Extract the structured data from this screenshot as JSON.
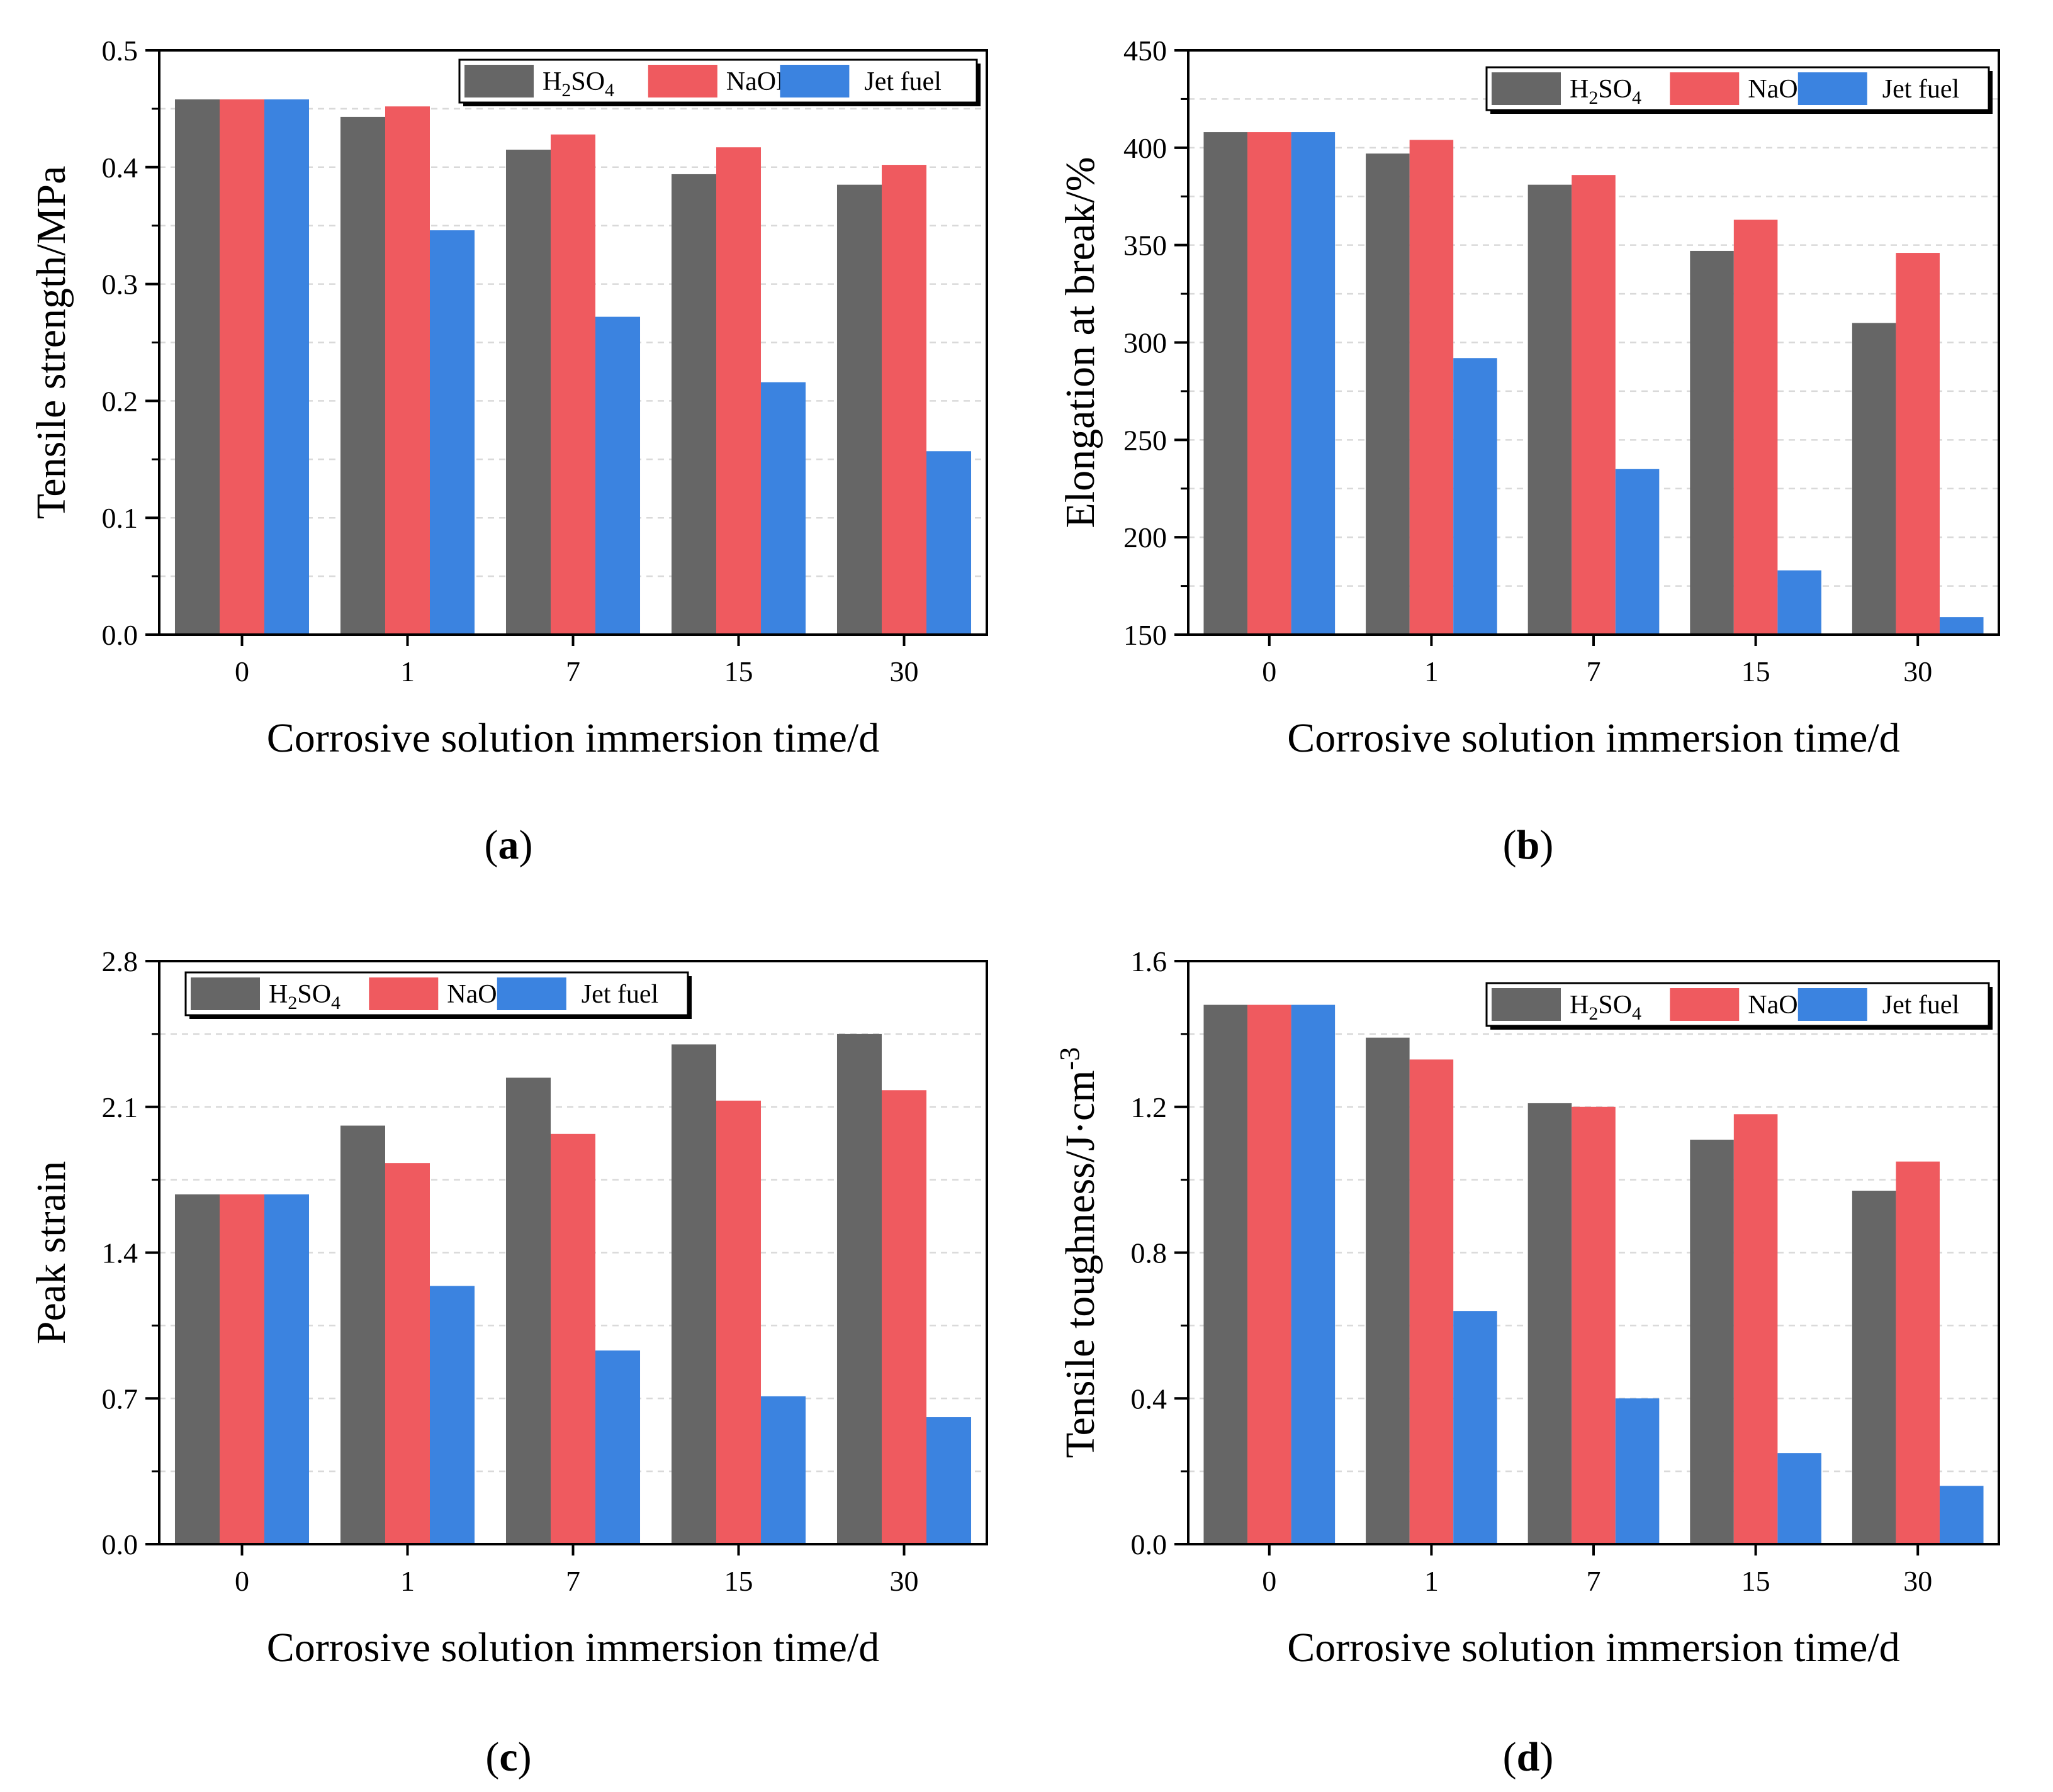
{
  "colors": {
    "H2SO4": "#666666",
    "NaOH": "#ef5a5f",
    "Jet fuel": "#3b83e0"
  },
  "legend": {
    "h2so4_main": "H",
    "h2so4_sub1": "2",
    "h2so4_mid": "SO",
    "h2so4_sub2": "4",
    "naoh": "NaOH",
    "jet_fuel": "Jet fuel"
  },
  "chart_data": [
    {
      "id": "a",
      "type": "bar",
      "caption_letter": "a",
      "categories": [
        "0",
        "1",
        "7",
        "15",
        "30"
      ],
      "series": [
        {
          "name": "H2SO4",
          "values": [
            0.458,
            0.443,
            0.415,
            0.394,
            0.385
          ]
        },
        {
          "name": "NaOH",
          "values": [
            0.458,
            0.452,
            0.428,
            0.417,
            0.402
          ]
        },
        {
          "name": "Jet fuel",
          "values": [
            0.458,
            0.346,
            0.272,
            0.216,
            0.157
          ]
        }
      ],
      "xlabel": "Corrosive solution immersion time/d",
      "ylabel": "Tensile strength/MPa",
      "ylim": [
        0,
        0.5
      ],
      "yticks": [
        "0.0",
        "0.1",
        "0.2",
        "0.3",
        "0.4",
        "0.5"
      ],
      "legend_position": "top-right"
    },
    {
      "id": "b",
      "type": "bar",
      "caption_letter": "b",
      "categories": [
        "0",
        "1",
        "7",
        "15",
        "30"
      ],
      "series": [
        {
          "name": "H2SO4",
          "values": [
            408,
            397,
            381,
            347,
            310
          ]
        },
        {
          "name": "NaOH",
          "values": [
            408,
            404,
            386,
            363,
            346
          ]
        },
        {
          "name": "Jet fuel",
          "values": [
            408,
            292,
            235,
            183,
            159
          ]
        }
      ],
      "xlabel": "Corrosive solution immersion time/d",
      "ylabel": "Elongation at break/%",
      "ylim": [
        150,
        450
      ],
      "yticks": [
        "150",
        "200",
        "250",
        "300",
        "350",
        "400",
        "450"
      ],
      "legend_position": "top-right"
    },
    {
      "id": "c",
      "type": "bar",
      "caption_letter": "c",
      "categories": [
        "0",
        "1",
        "7",
        "15",
        "30"
      ],
      "series": [
        {
          "name": "H2SO4",
          "values": [
            1.68,
            2.01,
            2.24,
            2.4,
            2.45
          ]
        },
        {
          "name": "NaOH",
          "values": [
            1.68,
            1.83,
            1.97,
            2.13,
            2.18
          ]
        },
        {
          "name": "Jet fuel",
          "values": [
            1.68,
            1.24,
            0.93,
            0.71,
            0.61
          ]
        }
      ],
      "xlabel": "Corrosive solution immersion time/d",
      "ylabel": "Peak strain",
      "ylim": [
        0,
        2.8
      ],
      "yticks": [
        "0.0",
        "0.7",
        "1.4",
        "2.1",
        "2.8"
      ],
      "legend_position": "top-left"
    },
    {
      "id": "d",
      "type": "bar",
      "caption_letter": "d",
      "categories": [
        "0",
        "1",
        "7",
        "15",
        "30"
      ],
      "series": [
        {
          "name": "H2SO4",
          "values": [
            1.48,
            1.39,
            1.21,
            1.11,
            0.97
          ]
        },
        {
          "name": "NaOH",
          "values": [
            1.48,
            1.33,
            1.2,
            1.18,
            1.05
          ]
        },
        {
          "name": "Jet fuel",
          "values": [
            1.48,
            0.64,
            0.4,
            0.25,
            0.16
          ]
        }
      ],
      "xlabel": "Corrosive solution immersion time/d",
      "ylabel": "Tensile toughness/J·cm",
      "ylabel_sup": "-3",
      "ylim": [
        0,
        1.6
      ],
      "yticks": [
        "0.0",
        "0.4",
        "0.8",
        "1.2",
        "1.6"
      ],
      "legend_position": "top-right"
    }
  ]
}
